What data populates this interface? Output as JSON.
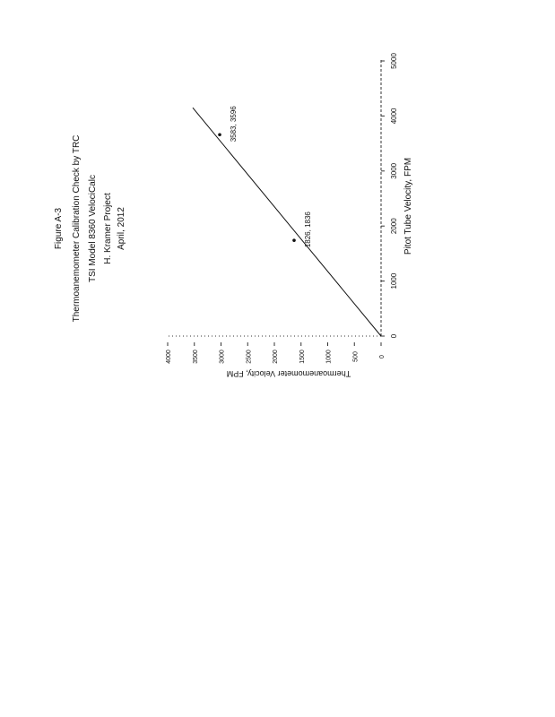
{
  "titles": [
    "Figure A-3",
    "Thermoanemometer Calibration Check by TRC",
    "TSI Model 8360 VelociCalc",
    "H. Kramer Project",
    "April, 2012"
  ],
  "chart_data": {
    "type": "scatter",
    "orientation": "page rotated 90 degrees",
    "xlabel": "Pitot Tube Velocity, FPM",
    "ylabel": "Thermoanemometer Velocity, FPM",
    "xlim": [
      0,
      5000
    ],
    "ylim": [
      0,
      4000
    ],
    "xticks": [
      "0",
      "1000",
      "2000",
      "3000",
      "4000",
      "5000"
    ],
    "yticks": [
      "0",
      "500",
      "1000",
      "1500",
      "2000",
      "2500",
      "3000",
      "3500",
      "4000"
    ],
    "grid": false,
    "points": [
      {
        "x": 1740,
        "y": 1630,
        "label": "1826, 1836"
      },
      {
        "x": 3660,
        "y": 3025,
        "label": "3583, 3596"
      }
    ],
    "trendline": {
      "x": [
        0,
        4150
      ],
      "y": [
        0,
        3530
      ]
    }
  }
}
